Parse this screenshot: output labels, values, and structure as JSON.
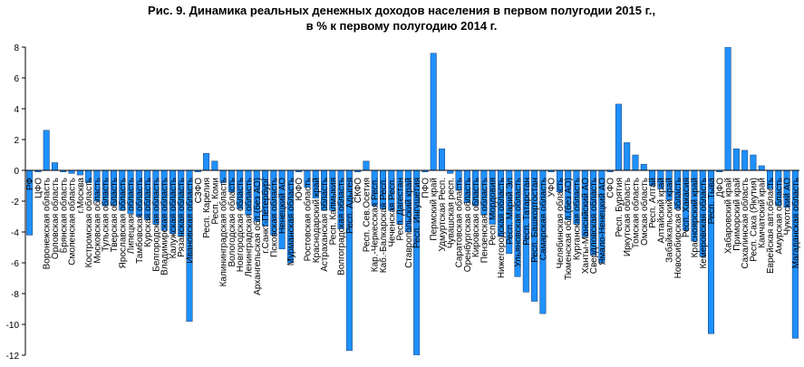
{
  "chart_data": {
    "type": "bar",
    "title": "Рис. 9. Динамика реальных денежных доходов населения в первом полугодии 2015 г.,",
    "subtitle": "в % к первому полугодию 2014 г.",
    "color": "#1e90ff",
    "ylim": [
      -12,
      8
    ],
    "yticks": [
      -12,
      -10,
      -8,
      -6,
      -4,
      -2,
      0,
      2,
      4,
      6,
      8
    ],
    "categories": [
      "РФ",
      "ЦФО",
      "Воронежская область",
      "Орловская область",
      "Брянская область",
      "Смоленская область",
      "г.Москва",
      "Костромская область",
      "Московская область",
      "Тульская область",
      "Тверская область",
      "Ярославская область",
      "Липецкая область",
      "Тамбовская область",
      "Курская область",
      "Белгородская область",
      "Владимирская область",
      "Калужская область",
      "Рязанская область",
      "Ивановская область",
      "СЗФО",
      "Респ. Карелия",
      "Респ. Коми",
      "Калининградская область",
      "Вологодская область",
      "Новгородская область",
      "Ленинградская область",
      "Архангельская обл.(без АО)",
      "г.Санкт-Петербург",
      "Псковская область",
      "Ненецкий АО",
      "Мурманская область",
      "ЮФО",
      "Ростовская область",
      "Краснодарский край",
      "Астраханская область",
      "Респ. Калмыкия",
      "Волгоградская область",
      "Респ. Адыгея",
      "СКФО",
      "Респ. Сев.Осетия",
      "Кар.-Черкесская Респ.",
      "Каб.-Балкарская Респ.",
      "Чеченская Респ.",
      "Респ. Дагестан",
      "Ставропольский край",
      "Респ. Ингушетия",
      "ПФО",
      "Пермский край",
      "Удмуртская Респ.",
      "Чувашская респ.",
      "Саратовская область",
      "Оренбургская область",
      "Кировская область",
      "Пензенская область",
      "Респ. Мордовия",
      "Нижегородская область",
      "Респ. Марий Эл",
      "Ульяновская область",
      "Респ. Татарстан",
      "Респ. Башкортостан",
      "Самарская область",
      "УФО",
      "Челябинская область",
      "Тюменская обл.(без АО)",
      "Курганская область",
      "Ханты-Мансийский АО",
      "Свердловская область",
      "Ямало-Ненецкий АО",
      "СФО",
      "Респ. Бурятия",
      "Иркутская область",
      "Томская область",
      "Омская область",
      "Респ. Алтай",
      "Алтайский край",
      "Забайкальский край",
      "Новосибирская область",
      "Респ. Хакасия",
      "Красноярский край",
      "Кемеровская область",
      "Респ. Тыва",
      "ДФО",
      "Хабаровский край",
      "Приморский край",
      "Сахалинская область",
      "Респ. Саха (Якутия)",
      "Камчатский край",
      "Еврейская авт.область",
      "Амурская область",
      "Чукотский АО",
      "Магаданская область"
    ],
    "values": [
      -4.2,
      -0.1,
      2.6,
      0.5,
      -0.1,
      -0.2,
      -0.3,
      -0.8,
      -2.0,
      -2.3,
      -2.3,
      -2.6,
      -2.8,
      -3.0,
      -3.2,
      -3.5,
      -3.9,
      -4.1,
      -4.3,
      -9.8,
      -0.1,
      1.1,
      0.6,
      -0.8,
      -1.4,
      -2.5,
      -2.9,
      -3.3,
      -3.6,
      -4.2,
      -5.1,
      -6.0,
      -0.1,
      -1.1,
      -1.8,
      -2.6,
      -2.6,
      -3.8,
      -11.7,
      -0.1,
      0.6,
      -2.3,
      -2.5,
      -2.6,
      -3.5,
      -4.0,
      -12.0,
      -0.1,
      7.6,
      1.4,
      -0.2,
      -1.3,
      -2.1,
      -2.3,
      -2.9,
      -3.5,
      -4.3,
      -5.4,
      -6.9,
      -7.9,
      -8.5,
      -9.3,
      -0.1,
      -1.4,
      -3.2,
      -3.5,
      -4.3,
      -5.5,
      -6.0,
      -0.1,
      4.3,
      1.8,
      1.0,
      0.4,
      -1.0,
      -1.2,
      -1.9,
      -2.5,
      -3.9,
      -4.6,
      -5.6,
      -10.6,
      -0.1,
      8.0,
      1.4,
      1.3,
      1.0,
      0.3,
      -1.2,
      -2.3,
      -2.4,
      -10.9
    ]
  }
}
